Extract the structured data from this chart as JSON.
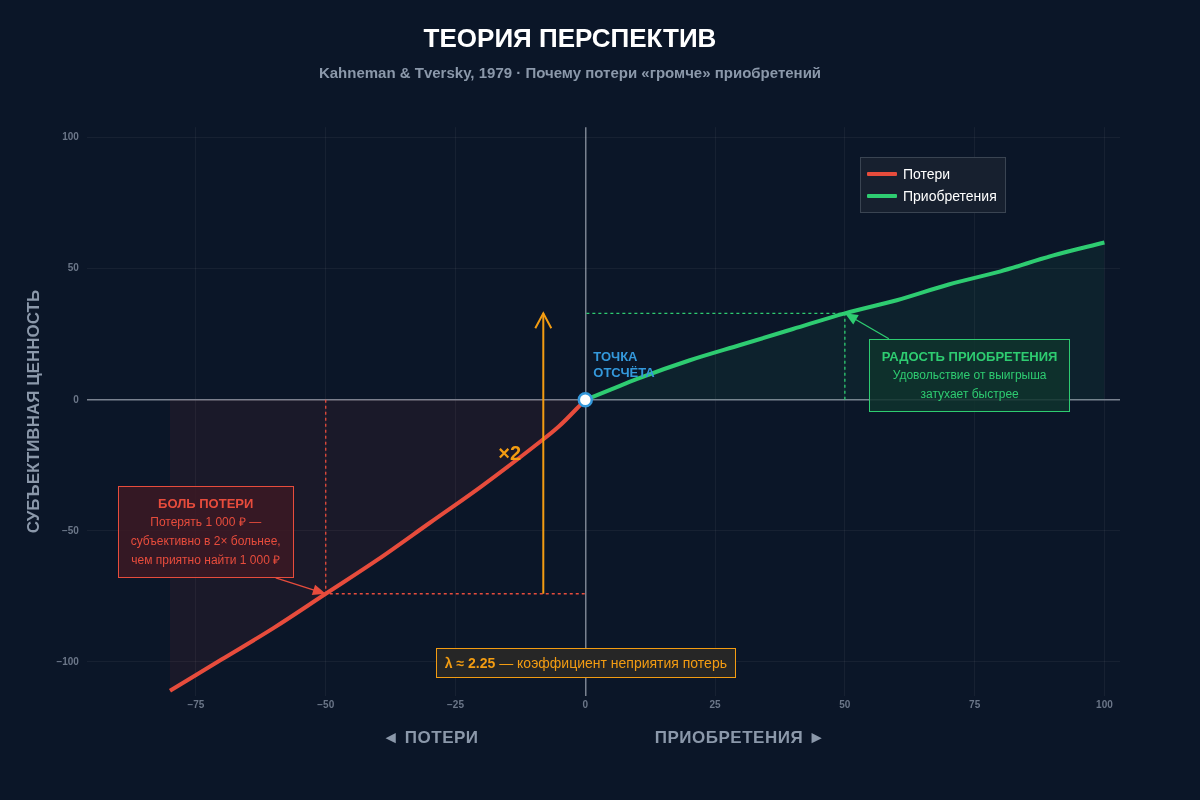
{
  "chart_data": {
    "type": "area",
    "title": "ТЕОРИЯ ПЕРСПЕКТИВ",
    "subtitle": "Kahneman & Tversky, 1979 · Почему потери «громче» приобретений",
    "ylabel": "СУБЪЕКТИВНАЯ ЦЕННОСТЬ",
    "series": [
      {
        "name": "Потери",
        "color": "#e74c3c",
        "x": [
          -80,
          -70,
          -60,
          -50,
          -40,
          -30,
          -20,
          -10,
          -5,
          0
        ],
        "values": [
          -111,
          -99,
          -87,
          -74,
          -61,
          -47,
          -33,
          -18,
          -10,
          0
        ]
      },
      {
        "name": "Приобретения",
        "color": "#2ecc71",
        "x": [
          0,
          5,
          10,
          20,
          30,
          40,
          50,
          60,
          70,
          80,
          90,
          100
        ],
        "values": [
          0,
          4,
          8,
          15,
          21,
          27,
          33,
          38,
          44,
          49,
          55,
          60
        ]
      }
    ],
    "xlim": [
      -96,
      103
    ],
    "ylim": [
      -113,
      104
    ],
    "xticks": [
      {
        "value": -75,
        "label": "−75"
      },
      {
        "value": -50,
        "label": "−50"
      },
      {
        "value": -25,
        "label": "−25"
      },
      0,
      25,
      50,
      75,
      100
    ],
    "yticks": [
      {
        "value": -100,
        "label": "−100"
      },
      {
        "value": -50,
        "label": "−50"
      },
      0,
      50,
      100
    ],
    "grid": true,
    "legend": "top right",
    "annotations": [
      {
        "text": "ТОЧКА\nОТСЧЁТА",
        "x": 0,
        "y": 0
      },
      {
        "text": "БОЛЬ ПОТЕРИ\nПотерять 1 000 ₽ —\nсубъективно в 2× больнее,\nчем приятно найти 1 000 ₽",
        "x": -50,
        "y": -74
      },
      {
        "text": "РАДОСТЬ ПРИОБРЕТЕНИЯ\nУдовольствие от выигрыша\nзатухает быстрее",
        "x": 50,
        "y": 33
      },
      "×2",
      "λ ≈ 2.25  —  коэффициент неприятия потерь",
      "◄ ПОТЕРИ",
      "ПРИОБРЕТЕНИЯ ►"
    ]
  }
}
